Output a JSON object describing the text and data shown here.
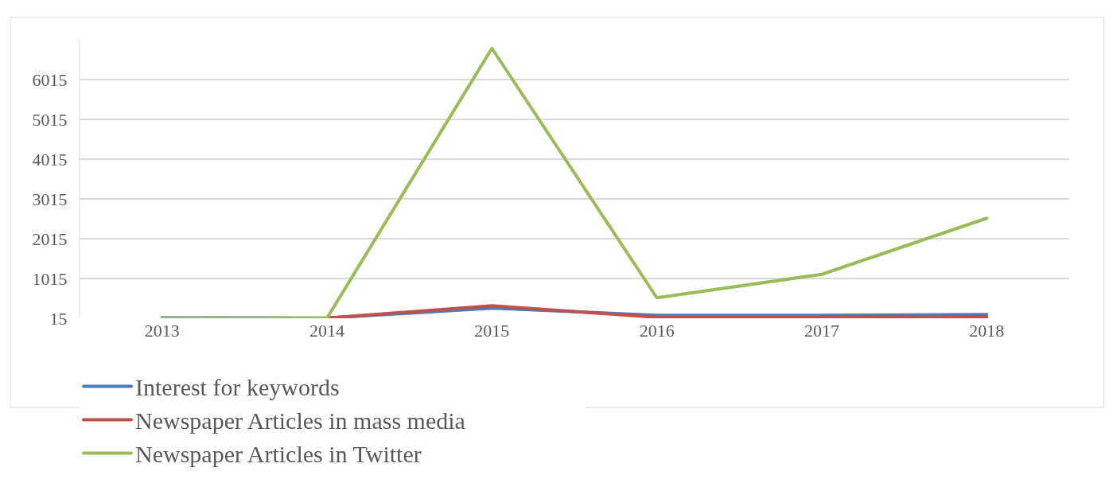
{
  "chart_data": {
    "type": "line",
    "categories": [
      "2013",
      "2014",
      "2015",
      "2016",
      "2017",
      "2018"
    ],
    "series": [
      {
        "name": "Interest for keywords",
        "color": "#4a7ebb",
        "values": [
          30,
          20,
          270,
          90,
          90,
          110
        ]
      },
      {
        "name": "Newspaper Articles in mass media",
        "color": "#c0504d",
        "values": [
          null,
          20,
          330,
          40,
          40,
          50
        ]
      },
      {
        "name": "Newspaper Articles in Twitter",
        "color": "#9bbb59",
        "values": [
          20,
          20,
          6800,
          530,
          1120,
          2530
        ]
      }
    ],
    "ylim": [
      15,
      7015
    ],
    "yticks": [
      15,
      1015,
      2015,
      3015,
      4015,
      5015,
      6015
    ],
    "grid": "y",
    "legend": "bottom",
    "marker": "none",
    "line_style": "solid"
  }
}
